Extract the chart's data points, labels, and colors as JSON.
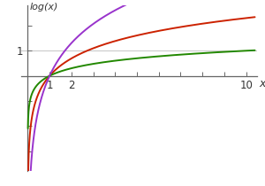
{
  "xlabel": "x",
  "ylabel": "log(x)",
  "xlim": [
    -0.3,
    10.5
  ],
  "ylim": [
    -3.8,
    2.8
  ],
  "x_axis_pos": 0,
  "y_axis_pos": 0,
  "xticks": [
    1,
    2,
    3,
    4,
    5,
    6,
    7,
    8,
    9,
    10
  ],
  "yticks": [
    -3,
    -2,
    -1,
    1,
    2
  ],
  "x_tick_labels_show": {
    "1": "1",
    "2": "2",
    "10": "10"
  },
  "y_tick_labels_show": {
    "1": "1"
  },
  "base_e_color": "#cc2200",
  "base_10_color": "#228800",
  "base_17_color": "#9933cc",
  "line_width": 1.4,
  "background_color": "#ffffff",
  "axis_color": "#666666",
  "grid_line_color": "#bbbbbb",
  "grid_line_y": 1,
  "x_start": 0.008
}
